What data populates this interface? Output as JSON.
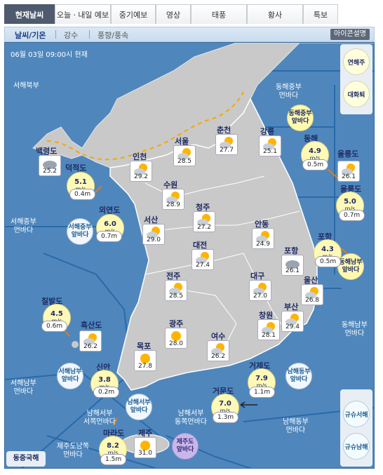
{
  "tabs": [
    "현재날씨",
    "오늘ㆍ내일 예보",
    "중기예보",
    "영상",
    "태풍",
    "황사",
    "특보"
  ],
  "subtabs": [
    "날씨/기온",
    "강수",
    "풍향/풍속"
  ],
  "help_label": "아이콘설명",
  "timestamp": "06월 03일 09:00시 현재",
  "regions": {
    "seohae_north": "서해북부",
    "seohae_mid": "서해중부\n먼바다",
    "seohae_south": "서해남부\n먼바다",
    "donghae_mid": "동해중부\n먼바다",
    "donghae_south": "동해남부\n먼바다",
    "namhae_west": "남해서부\n서쪽먼바다",
    "namhae_west_east": "남해서부\n동쪽먼바다",
    "namhae_east": "남해동부\n먼바다",
    "jeju_south": "제주도남쪽\n먼바다"
  },
  "bubbles": {
    "yeonpyeong": "연해주",
    "daehwa": "대화퇴",
    "donghae_mid_front": "동해중부\n앞바다",
    "donghae_south_front": "동해남부\n앞바다",
    "seohae_mid_front": "서해중부\n앞바다",
    "seohae_south_front": "서해남부\n앞바다",
    "namhae_east_front": "남해동부\n앞바다",
    "namhae_west_front": "남해서부\n앞바다",
    "jeju_front": "제주도\n앞바다",
    "kyushu_west": "규슈서해",
    "kyushu_south": "규슈남해",
    "east_china": "동중국해"
  },
  "cities": [
    {
      "name": "백령도",
      "temp": "25.2",
      "icon": "cloudy"
    },
    {
      "name": "인천",
      "temp": "29.2",
      "icon": "partly-cloudy"
    },
    {
      "name": "서울",
      "temp": "28.5",
      "icon": "partly-cloudy"
    },
    {
      "name": "춘천",
      "temp": "27.7",
      "icon": "partly-cloudy"
    },
    {
      "name": "강릉",
      "temp": "25.1",
      "icon": "partly-cloudy"
    },
    {
      "name": "수원",
      "temp": "28.9",
      "icon": "partly-cloudy"
    },
    {
      "name": "청주",
      "temp": "27.2",
      "icon": "partly-cloudy"
    },
    {
      "name": "서산",
      "temp": "29.0",
      "icon": "partly-cloudy"
    },
    {
      "name": "대전",
      "temp": "27.4",
      "icon": "partly-cloudy"
    },
    {
      "name": "안동",
      "temp": "24.9",
      "icon": "partly-cloudy"
    },
    {
      "name": "포항",
      "temp": "26.1",
      "icon": "cloudy"
    },
    {
      "name": "전주",
      "temp": "28.5",
      "icon": "partly-cloudy"
    },
    {
      "name": "대구",
      "temp": "27.0",
      "icon": "partly-cloudy"
    },
    {
      "name": "울산",
      "temp": "26.8",
      "icon": "partly-cloudy"
    },
    {
      "name": "광주",
      "temp": "28.0",
      "icon": "sunny"
    },
    {
      "name": "창원",
      "temp": "28.1",
      "icon": "partly-cloudy"
    },
    {
      "name": "부산",
      "temp": "29.4",
      "icon": "partly-cloudy"
    },
    {
      "name": "목포",
      "temp": "27.8",
      "icon": "sunny"
    },
    {
      "name": "여수",
      "temp": "26.2",
      "icon": "partly-cloudy"
    },
    {
      "name": "흑산도",
      "temp": "26.2",
      "icon": "partly-cloudy"
    },
    {
      "name": "제주",
      "temp": "31.0",
      "icon": "sunny"
    }
  ],
  "marine": [
    {
      "name": "덕적도",
      "speed": "5.1",
      "unit": "m/s",
      "wave": "0.4m"
    },
    {
      "name": "외연도",
      "speed": "6.0",
      "unit": "m/s",
      "wave": "0.7m"
    },
    {
      "name": "칠발도",
      "speed": "4.5",
      "unit": "m/s",
      "wave": "0.6m"
    },
    {
      "name": "신안",
      "speed": "3.8",
      "unit": "m/s",
      "wave": "0.2m"
    },
    {
      "name": "마라도",
      "speed": "8.2",
      "unit": "m/s",
      "wave": "1.5m"
    },
    {
      "name": "거문도",
      "speed": "7.0",
      "unit": "m/s",
      "wave": "1.3m"
    },
    {
      "name": "거제도",
      "speed": "7.9",
      "unit": "m/s",
      "wave": "1.1m"
    },
    {
      "name": "동해",
      "speed": "4.9",
      "unit": "m/s",
      "wave": "0.5m"
    },
    {
      "name": "울릉도\n/독도",
      "speed": "",
      "unit": "",
      "wave": ""
    },
    {
      "name": "울릉도",
      "speed": "5.0",
      "unit": "m/s",
      "wave": "0.7m"
    },
    {
      "name": "포항",
      "speed": "4.3",
      "unit": "m/s",
      "wave": "0.5m"
    }
  ],
  "colors": {
    "sea": "#4f87bd",
    "land": "#c9c9c9",
    "wind_bubble": "#fff9b8"
  }
}
